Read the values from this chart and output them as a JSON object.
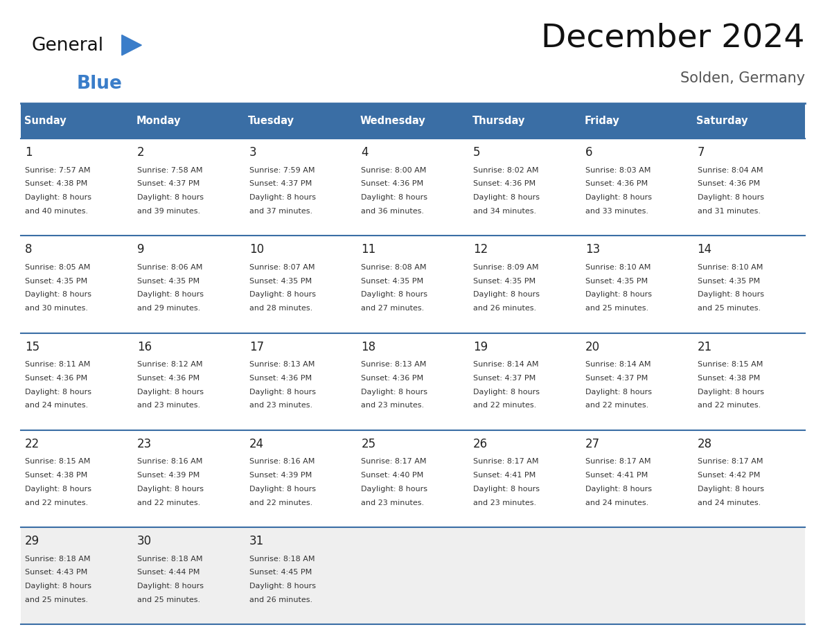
{
  "title": "December 2024",
  "subtitle": "Solden, Germany",
  "header_color": "#3A6EA5",
  "header_text_color": "#FFFFFF",
  "day_names": [
    "Sunday",
    "Monday",
    "Tuesday",
    "Wednesday",
    "Thursday",
    "Friday",
    "Saturday"
  ],
  "grid_line_color": "#3A6EA5",
  "bg_color": "#FFFFFF",
  "cell_bg_color": "#FFFFFF",
  "last_row_bg_color": "#EFEFEF",
  "day_num_color": "#222222",
  "cell_text_color": "#333333",
  "logo_general_color": "#111111",
  "logo_blue_color": "#3A7DC9",
  "weeks": [
    [
      {
        "day": 1,
        "sunrise": "7:57 AM",
        "sunset": "4:38 PM",
        "daylight": "8 hours",
        "daylight2": "and 40 minutes."
      },
      {
        "day": 2,
        "sunrise": "7:58 AM",
        "sunset": "4:37 PM",
        "daylight": "8 hours",
        "daylight2": "and 39 minutes."
      },
      {
        "day": 3,
        "sunrise": "7:59 AM",
        "sunset": "4:37 PM",
        "daylight": "8 hours",
        "daylight2": "and 37 minutes."
      },
      {
        "day": 4,
        "sunrise": "8:00 AM",
        "sunset": "4:36 PM",
        "daylight": "8 hours",
        "daylight2": "and 36 minutes."
      },
      {
        "day": 5,
        "sunrise": "8:02 AM",
        "sunset": "4:36 PM",
        "daylight": "8 hours",
        "daylight2": "and 34 minutes."
      },
      {
        "day": 6,
        "sunrise": "8:03 AM",
        "sunset": "4:36 PM",
        "daylight": "8 hours",
        "daylight2": "and 33 minutes."
      },
      {
        "day": 7,
        "sunrise": "8:04 AM",
        "sunset": "4:36 PM",
        "daylight": "8 hours",
        "daylight2": "and 31 minutes."
      }
    ],
    [
      {
        "day": 8,
        "sunrise": "8:05 AM",
        "sunset": "4:35 PM",
        "daylight": "8 hours",
        "daylight2": "and 30 minutes."
      },
      {
        "day": 9,
        "sunrise": "8:06 AM",
        "sunset": "4:35 PM",
        "daylight": "8 hours",
        "daylight2": "and 29 minutes."
      },
      {
        "day": 10,
        "sunrise": "8:07 AM",
        "sunset": "4:35 PM",
        "daylight": "8 hours",
        "daylight2": "and 28 minutes."
      },
      {
        "day": 11,
        "sunrise": "8:08 AM",
        "sunset": "4:35 PM",
        "daylight": "8 hours",
        "daylight2": "and 27 minutes."
      },
      {
        "day": 12,
        "sunrise": "8:09 AM",
        "sunset": "4:35 PM",
        "daylight": "8 hours",
        "daylight2": "and 26 minutes."
      },
      {
        "day": 13,
        "sunrise": "8:10 AM",
        "sunset": "4:35 PM",
        "daylight": "8 hours",
        "daylight2": "and 25 minutes."
      },
      {
        "day": 14,
        "sunrise": "8:10 AM",
        "sunset": "4:35 PM",
        "daylight": "8 hours",
        "daylight2": "and 25 minutes."
      }
    ],
    [
      {
        "day": 15,
        "sunrise": "8:11 AM",
        "sunset": "4:36 PM",
        "daylight": "8 hours",
        "daylight2": "and 24 minutes."
      },
      {
        "day": 16,
        "sunrise": "8:12 AM",
        "sunset": "4:36 PM",
        "daylight": "8 hours",
        "daylight2": "and 23 minutes."
      },
      {
        "day": 17,
        "sunrise": "8:13 AM",
        "sunset": "4:36 PM",
        "daylight": "8 hours",
        "daylight2": "and 23 minutes."
      },
      {
        "day": 18,
        "sunrise": "8:13 AM",
        "sunset": "4:36 PM",
        "daylight": "8 hours",
        "daylight2": "and 23 minutes."
      },
      {
        "day": 19,
        "sunrise": "8:14 AM",
        "sunset": "4:37 PM",
        "daylight": "8 hours",
        "daylight2": "and 22 minutes."
      },
      {
        "day": 20,
        "sunrise": "8:14 AM",
        "sunset": "4:37 PM",
        "daylight": "8 hours",
        "daylight2": "and 22 minutes."
      },
      {
        "day": 21,
        "sunrise": "8:15 AM",
        "sunset": "4:38 PM",
        "daylight": "8 hours",
        "daylight2": "and 22 minutes."
      }
    ],
    [
      {
        "day": 22,
        "sunrise": "8:15 AM",
        "sunset": "4:38 PM",
        "daylight": "8 hours",
        "daylight2": "and 22 minutes."
      },
      {
        "day": 23,
        "sunrise": "8:16 AM",
        "sunset": "4:39 PM",
        "daylight": "8 hours",
        "daylight2": "and 22 minutes."
      },
      {
        "day": 24,
        "sunrise": "8:16 AM",
        "sunset": "4:39 PM",
        "daylight": "8 hours",
        "daylight2": "and 22 minutes."
      },
      {
        "day": 25,
        "sunrise": "8:17 AM",
        "sunset": "4:40 PM",
        "daylight": "8 hours",
        "daylight2": "and 23 minutes."
      },
      {
        "day": 26,
        "sunrise": "8:17 AM",
        "sunset": "4:41 PM",
        "daylight": "8 hours",
        "daylight2": "and 23 minutes."
      },
      {
        "day": 27,
        "sunrise": "8:17 AM",
        "sunset": "4:41 PM",
        "daylight": "8 hours",
        "daylight2": "and 24 minutes."
      },
      {
        "day": 28,
        "sunrise": "8:17 AM",
        "sunset": "4:42 PM",
        "daylight": "8 hours",
        "daylight2": "and 24 minutes."
      }
    ],
    [
      {
        "day": 29,
        "sunrise": "8:18 AM",
        "sunset": "4:43 PM",
        "daylight": "8 hours",
        "daylight2": "and 25 minutes."
      },
      {
        "day": 30,
        "sunrise": "8:18 AM",
        "sunset": "4:44 PM",
        "daylight": "8 hours",
        "daylight2": "and 25 minutes."
      },
      {
        "day": 31,
        "sunrise": "8:18 AM",
        "sunset": "4:45 PM",
        "daylight": "8 hours",
        "daylight2": "and 26 minutes."
      },
      null,
      null,
      null,
      null
    ]
  ],
  "figwidth": 11.88,
  "figheight": 9.18,
  "dpi": 100
}
